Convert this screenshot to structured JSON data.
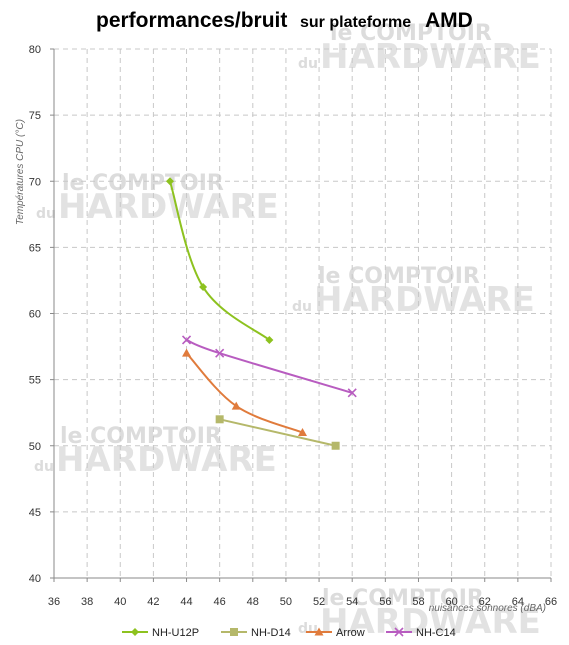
{
  "title": {
    "part1": "performances/bruit",
    "part2": "sur plateforme",
    "part3": "AMD"
  },
  "watermark": {
    "line1": "le COMPTOIR",
    "du": "du",
    "line2": "HARDWARE"
  },
  "chart_data": {
    "type": "line",
    "xlabel": "nuisances sonnores (dBA)",
    "ylabel": "Températures  CPU (°C)",
    "xlim": [
      36,
      66
    ],
    "ylim": [
      40,
      80
    ],
    "x_ticks": [
      36,
      38,
      40,
      42,
      44,
      46,
      48,
      50,
      52,
      54,
      56,
      58,
      60,
      62,
      64,
      66
    ],
    "y_ticks": [
      40,
      45,
      50,
      55,
      60,
      65,
      70,
      75,
      80
    ],
    "grid": true,
    "legend_position": "bottom",
    "series": [
      {
        "name": "NH-U12P",
        "color": "#8dc21f",
        "marker": "diamond",
        "points": [
          [
            43,
            70
          ],
          [
            45,
            62
          ],
          [
            49,
            58
          ]
        ]
      },
      {
        "name": "NH-D14",
        "color": "#b5b86a",
        "marker": "square",
        "points": [
          [
            46,
            52
          ],
          [
            53,
            50
          ]
        ]
      },
      {
        "name": "Arrow",
        "color": "#e07b3c",
        "marker": "triangle",
        "points": [
          [
            44,
            57
          ],
          [
            47,
            53
          ],
          [
            51,
            51
          ]
        ]
      },
      {
        "name": "NH-C14",
        "color": "#b85cc0",
        "marker": "x",
        "points": [
          [
            44,
            58
          ],
          [
            46,
            57
          ],
          [
            54,
            54
          ]
        ]
      }
    ]
  }
}
